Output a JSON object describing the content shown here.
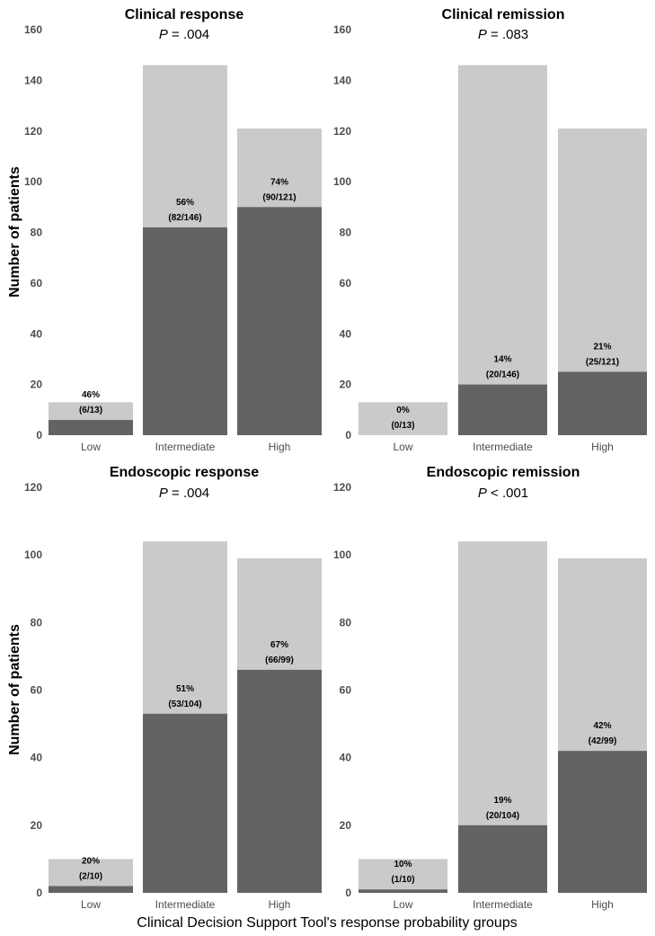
{
  "figure": {
    "ylabel": "Number of patients",
    "xlabel": "Clinical Decision Support Tool's response probability groups"
  },
  "colors": {
    "total": "#cacaca",
    "outcome": "#636363"
  },
  "chart_data": [
    {
      "type": "bar",
      "stacked": "overlay",
      "title": "Clinical response",
      "p_label": "P",
      "p_value": " = .004",
      "categories": [
        "Low",
        "Intermediate",
        "High"
      ],
      "series": [
        {
          "role": "total",
          "values": [
            13,
            146,
            121
          ]
        },
        {
          "role": "outcome",
          "values": [
            6,
            82,
            90
          ]
        }
      ],
      "labels": [
        {
          "pct": "46%",
          "frac": "(6/13)"
        },
        {
          "pct": "56%",
          "frac": "(82/146)"
        },
        {
          "pct": "74%",
          "frac": "(90/121)"
        }
      ],
      "ylim": [
        0,
        160
      ],
      "yticks": [
        0,
        20,
        40,
        60,
        80,
        100,
        120,
        140,
        160
      ]
    },
    {
      "type": "bar",
      "stacked": "overlay",
      "title": "Clinical remission",
      "p_label": "P",
      "p_value": " = .083",
      "categories": [
        "Low",
        "Intermediate",
        "High"
      ],
      "series": [
        {
          "role": "total",
          "values": [
            13,
            146,
            121
          ]
        },
        {
          "role": "outcome",
          "values": [
            0,
            20,
            25
          ]
        }
      ],
      "labels": [
        {
          "pct": "0%",
          "frac": "(0/13)"
        },
        {
          "pct": "14%",
          "frac": "(20/146)"
        },
        {
          "pct": "21%",
          "frac": "(25/121)"
        }
      ],
      "ylim": [
        0,
        160
      ],
      "yticks": [
        0,
        20,
        40,
        60,
        80,
        100,
        120,
        140,
        160
      ]
    },
    {
      "type": "bar",
      "stacked": "overlay",
      "title": "Endoscopic response",
      "p_label": "P",
      "p_value": " = .004",
      "categories": [
        "Low",
        "Intermediate",
        "High"
      ],
      "series": [
        {
          "role": "total",
          "values": [
            10,
            104,
            99
          ]
        },
        {
          "role": "outcome",
          "values": [
            2,
            53,
            66
          ]
        }
      ],
      "labels": [
        {
          "pct": "20%",
          "frac": "(2/10)"
        },
        {
          "pct": "51%",
          "frac": "(53/104)"
        },
        {
          "pct": "67%",
          "frac": "(66/99)"
        }
      ],
      "ylim": [
        0,
        120
      ],
      "yticks": [
        0,
        20,
        40,
        60,
        80,
        100,
        120
      ]
    },
    {
      "type": "bar",
      "stacked": "overlay",
      "title": "Endoscopic remission",
      "p_label": "P",
      "p_value": " < .001",
      "categories": [
        "Low",
        "Intermediate",
        "High"
      ],
      "series": [
        {
          "role": "total",
          "values": [
            10,
            104,
            99
          ]
        },
        {
          "role": "outcome",
          "values": [
            1,
            20,
            42
          ]
        }
      ],
      "labels": [
        {
          "pct": "10%",
          "frac": "(1/10)"
        },
        {
          "pct": "19%",
          "frac": "(20/104)"
        },
        {
          "pct": "42%",
          "frac": "(42/99)"
        }
      ],
      "ylim": [
        0,
        120
      ],
      "yticks": [
        0,
        20,
        40,
        60,
        80,
        100,
        120
      ]
    }
  ]
}
